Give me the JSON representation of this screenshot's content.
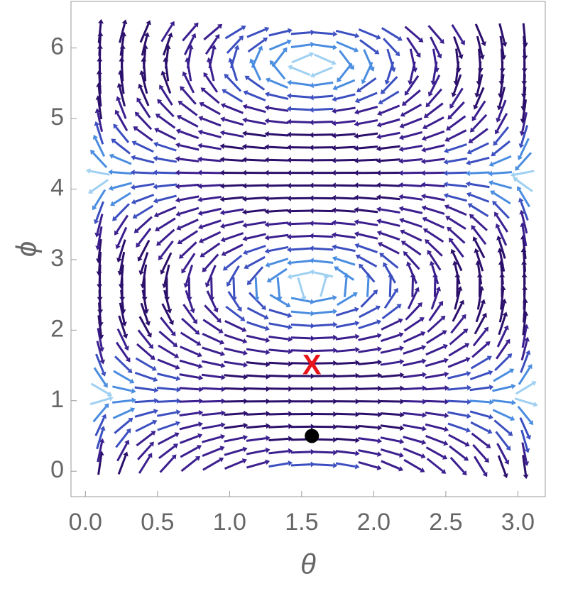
{
  "chart_data": {
    "type": "stream",
    "x_label": "θ",
    "y_label": "ϕ",
    "xlim": [
      -0.1,
      3.19
    ],
    "ylim": [
      -0.36,
      6.66
    ],
    "xticks": [
      {
        "value": 0,
        "label": "0.0"
      },
      0.5,
      {
        "value": 1,
        "label": "1.0"
      },
      1.5,
      {
        "value": 2,
        "label": "2.0"
      },
      2.5,
      {
        "value": 3,
        "label": "3.0"
      }
    ],
    "yticks": [
      0,
      1,
      2,
      3,
      4,
      5,
      6
    ],
    "points": [
      {
        "x": 1.5708,
        "y": 0.5,
        "color": "#000000"
      }
    ],
    "annotations": [
      {
        "text": "X",
        "x": 1.5708,
        "y": 1.5,
        "color": "#e8141b"
      }
    ]
  }
}
